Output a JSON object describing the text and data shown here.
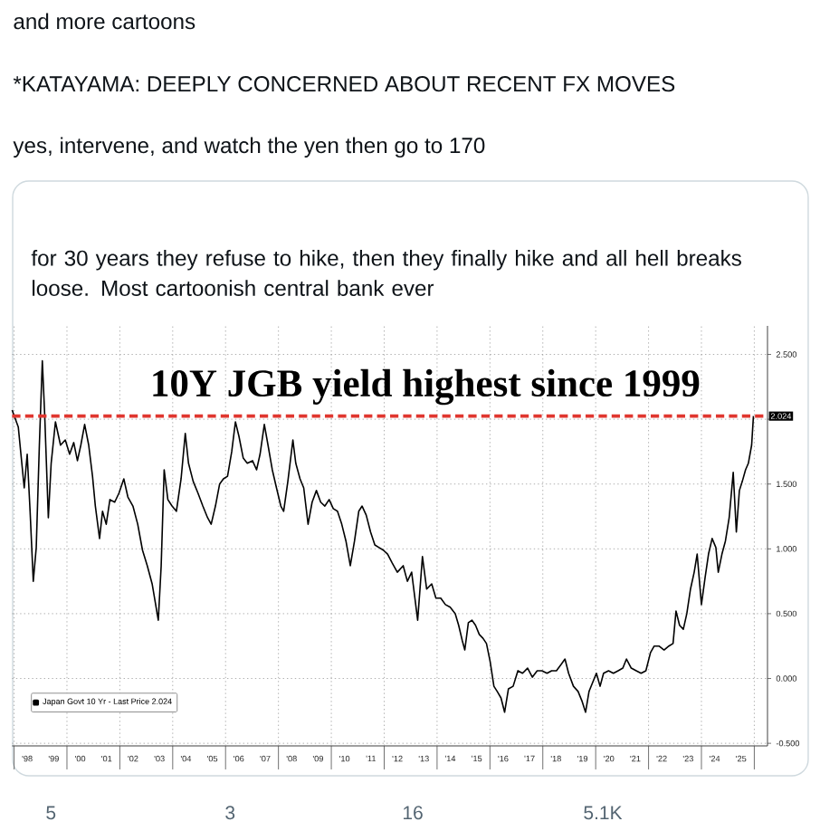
{
  "chart_data": {
    "type": "line",
    "annotations": [
      "and more cartoons",
      "*KATAYAMA: DEEPLY CONCERNED ABOUT RECENT FX MOVES",
      "yes, intervene, and watch the yen then go to 170",
      "for 30 years they refuse to hike, then they finally hike and all hell breaks loose. Most cartoonish central bank ever",
      "5",
      "3",
      "16",
      "5.1K",
      {
        "text": "2.024",
        "y": 2.024
      }
    ],
    "x": [
      "1997-12-05",
      "1998-02-28",
      "1998-05-21",
      "1998-07-01",
      "1998-08-10",
      "1998-09-23",
      "1998-11-03",
      "1998-12-16",
      "1999-01-26",
      "1999-02-28",
      "1999-04-19",
      "1999-05-28",
      "1999-07-26",
      "1999-10-04",
      "1999-12-09",
      "2000-02-07",
      "2000-04-04",
      "2000-05-25",
      "2000-07-11",
      "2000-09-02",
      "2000-10-28",
      "2000-12-20",
      "2001-01-28",
      "2001-03-27",
      "2001-05-07",
      "2001-06-27",
      "2001-08-17",
      "2001-10-22",
      "2001-12-20",
      "2002-02-25",
      "2002-04-22",
      "2002-07-01",
      "2002-09-05",
      "2002-11-10",
      "2003-01-15",
      "2003-03-23",
      "2003-06-16",
      "2003-07-26",
      "2003-09-05",
      "2003-10-26",
      "2003-12-23",
      "2004-02-21",
      "2004-04-26",
      "2004-06-23",
      "2004-08-07",
      "2004-10-11",
      "2004-12-16",
      "2005-02-21",
      "2005-04-28",
      "2005-06-16",
      "2005-08-14",
      "2005-10-11",
      "2005-12-02",
      "2006-01-28",
      "2006-03-27",
      "2006-05-17",
      "2006-07-04",
      "2006-09-02",
      "2006-10-28",
      "2007-01-08",
      "2007-03-05",
      "2007-04-22",
      "2007-06-20",
      "2007-08-10",
      "2007-10-08",
      "2007-12-05",
      "2008-02-03",
      "2008-03-13",
      "2008-05-10",
      "2008-07-19",
      "2008-08-28",
      "2008-10-26",
      "2008-12-16",
      "2009-02-14",
      "2009-04-11",
      "2009-06-09",
      "2009-08-07",
      "2009-10-04",
      "2009-12-02",
      "2010-01-28",
      "2010-03-27",
      "2010-05-25",
      "2010-07-22",
      "2010-09-20",
      "2010-11-17",
      "2011-01-15",
      "2011-03-02",
      "2011-04-28",
      "2011-06-27",
      "2011-08-25",
      "2011-10-22",
      "2011-12-20",
      "2012-02-17",
      "2012-04-22",
      "2012-07-01",
      "2012-09-20",
      "2012-11-17",
      "2013-01-15",
      "2013-04-08",
      "2013-06-13",
      "2013-08-10",
      "2013-10-19",
      "2013-12-16",
      "2014-02-21",
      "2014-04-26",
      "2014-07-01",
      "2014-09-09",
      "2014-10-26",
      "2014-12-16",
      "2015-01-19",
      "2015-03-09",
      "2015-04-28",
      "2015-06-16",
      "2015-08-07",
      "2015-09-27",
      "2015-11-14",
      "2016-01-04",
      "2016-02-25",
      "2016-04-11",
      "2016-06-02",
      "2016-07-22",
      "2016-09-13",
      "2016-11-17",
      "2017-01-22",
      "2017-03-27",
      "2017-06-05",
      "2017-08-10",
      "2017-10-15",
      "2017-12-20",
      "2018-02-28",
      "2018-05-03",
      "2018-07-08",
      "2018-09-13",
      "2018-11-03",
      "2018-12-23",
      "2019-02-28",
      "2019-05-03",
      "2019-06-23",
      "2019-08-14",
      "2019-10-01",
      "2019-11-21",
      "2020-01-11",
      "2020-03-02",
      "2020-04-19",
      "2020-06-27",
      "2020-09-02",
      "2020-11-07",
      "2021-01-11",
      "2021-03-02",
      "2021-05-07",
      "2021-07-15",
      "2021-09-20",
      "2021-11-25",
      "2022-01-28",
      "2022-03-20",
      "2022-05-25",
      "2022-08-03",
      "2022-10-08",
      "2022-12-05",
      "2023-01-15",
      "2023-03-05",
      "2023-04-26",
      "2023-06-13",
      "2023-08-03",
      "2023-09-23",
      "2023-11-03",
      "2024-01-01",
      "2024-02-21",
      "2024-04-08",
      "2024-05-28",
      "2024-07-19",
      "2024-08-21",
      "2024-10-11",
      "2024-11-28",
      "2025-01-19",
      "2025-03-16",
      "2025-04-28",
      "2025-06-09",
      "2025-07-19",
      "2025-09-02",
      "2025-10-11",
      "2025-11-25",
      "2025-12-20"
    ],
    "series": [
      {
        "name": "Japan Govt 10 Yr - Last Price 2.024",
        "color": "#000000",
        "values": [
          2.07,
          1.94,
          1.47,
          1.73,
          1.29,
          0.75,
          1.01,
          1.8,
          2.45,
          2.03,
          1.24,
          1.66,
          1.98,
          1.8,
          1.84,
          1.73,
          1.82,
          1.68,
          1.8,
          1.96,
          1.8,
          1.56,
          1.33,
          1.08,
          1.29,
          1.19,
          1.38,
          1.36,
          1.43,
          1.54,
          1.4,
          1.33,
          1.19,
          0.99,
          0.87,
          0.73,
          0.45,
          0.87,
          1.61,
          1.38,
          1.33,
          1.29,
          1.54,
          1.89,
          1.66,
          1.52,
          1.43,
          1.33,
          1.24,
          1.19,
          1.33,
          1.5,
          1.54,
          1.56,
          1.75,
          1.98,
          1.87,
          1.7,
          1.66,
          1.68,
          1.61,
          1.73,
          1.96,
          1.8,
          1.61,
          1.47,
          1.33,
          1.29,
          1.52,
          1.84,
          1.66,
          1.54,
          1.47,
          1.19,
          1.36,
          1.45,
          1.36,
          1.33,
          1.38,
          1.31,
          1.29,
          1.19,
          1.06,
          0.87,
          1.06,
          1.29,
          1.33,
          1.26,
          1.13,
          1.03,
          1.01,
          0.99,
          0.96,
          0.89,
          0.82,
          0.87,
          0.75,
          0.82,
          0.45,
          0.94,
          0.69,
          0.73,
          0.62,
          0.62,
          0.57,
          0.55,
          0.5,
          0.41,
          0.29,
          0.22,
          0.43,
          0.45,
          0.41,
          0.34,
          0.31,
          0.27,
          0.13,
          -0.06,
          -0.1,
          -0.15,
          -0.26,
          -0.08,
          -0.06,
          0.06,
          0.04,
          0.08,
          0.01,
          0.06,
          0.06,
          0.04,
          0.06,
          0.06,
          0.11,
          0.15,
          0.04,
          -0.06,
          -0.1,
          -0.17,
          -0.26,
          -0.1,
          -0.03,
          0.04,
          -0.06,
          0.04,
          0.06,
          0.04,
          0.06,
          0.08,
          0.15,
          0.08,
          0.06,
          0.04,
          0.06,
          0.2,
          0.25,
          0.25,
          0.22,
          0.25,
          0.27,
          0.52,
          0.41,
          0.38,
          0.5,
          0.69,
          0.82,
          0.96,
          0.57,
          0.78,
          0.96,
          1.08,
          1.01,
          0.82,
          0.96,
          1.06,
          1.24,
          1.59,
          1.13,
          1.45,
          1.52,
          1.61,
          1.66,
          1.8,
          2.024
        ]
      }
    ],
    "xlim": [
      "1997-12-05",
      "2026-07-02"
    ],
    "xticks": [
      {
        "value": "1998",
        "label": null
      },
      {
        "value": "1998-07-02",
        "label": "'98"
      },
      {
        "value": "1999-07-02",
        "label": "'99"
      },
      {
        "value": "2000",
        "label": null
      },
      {
        "value": "2000-07-02",
        "label": "'00"
      },
      {
        "value": "2001-07-02",
        "label": "'01"
      },
      {
        "value": "2002",
        "label": null
      },
      {
        "value": "2002-07-02",
        "label": "'02"
      },
      {
        "value": "2003-07-02",
        "label": "'03"
      },
      {
        "value": "2004",
        "label": null
      },
      {
        "value": "2004-07-02",
        "label": "'04"
      },
      {
        "value": "2005-07-02",
        "label": "'05"
      },
      {
        "value": "2006",
        "label": null
      },
      {
        "value": "2006-07-02",
        "label": "'06"
      },
      {
        "value": "2007-07-02",
        "label": "'07"
      },
      {
        "value": "2008",
        "label": null
      },
      {
        "value": "2008-07-02",
        "label": "'08"
      },
      {
        "value": "2009-07-02",
        "label": "'09"
      },
      {
        "value": "2010",
        "label": null
      },
      {
        "value": "2010-07-02",
        "label": "'10"
      },
      {
        "value": "2011-07-02",
        "label": "'11"
      },
      {
        "value": "2012",
        "label": null
      },
      {
        "value": "2012-07-02",
        "label": "'12"
      },
      {
        "value": "2013-07-02",
        "label": "'13"
      },
      {
        "value": "2014",
        "label": null
      },
      {
        "value": "2014-07-02",
        "label": "'14"
      },
      {
        "value": "2015-07-02",
        "label": "'15"
      },
      {
        "value": "2016",
        "label": null
      },
      {
        "value": "2016-07-02",
        "label": "'16"
      },
      {
        "value": "2017-07-02",
        "label": "'17"
      },
      {
        "value": "2018",
        "label": null
      },
      {
        "value": "2018-07-02",
        "label": "'18"
      },
      {
        "value": "2019-07-02",
        "label": "'19"
      },
      {
        "value": "2020",
        "label": null
      },
      {
        "value": "2020-07-02",
        "label": "'20"
      },
      {
        "value": "2021-07-02",
        "label": "'21"
      },
      {
        "value": "2022",
        "label": null
      },
      {
        "value": "2022-07-02",
        "label": "'22"
      },
      {
        "value": "2023-07-02",
        "label": "'23"
      },
      {
        "value": "2024",
        "label": null
      },
      {
        "value": "2024-07-02",
        "label": "'24"
      },
      {
        "value": "2025-07-02",
        "label": "'25"
      },
      {
        "value": "2026",
        "label": null
      }
    ],
    "ylim": [
      -0.52,
      2.72
    ],
    "yticks": [
      {
        "value": -0.5,
        "label": "-0.500"
      },
      {
        "value": 0,
        "label": "0.000"
      },
      {
        "value": 0.5,
        "label": "0.500"
      },
      {
        "value": 1,
        "label": "1.000"
      },
      {
        "value": 1.5,
        "label": "1.500"
      },
      {
        "value": 2,
        "label": null
      },
      {
        "value": 2.5,
        "label": "2.500"
      }
    ],
    "grid": true,
    "legend": "bottom left",
    "ref_lines": [
      {
        "axis": "y",
        "value": 2.024,
        "label": "10Y JGB yield highest since 1999",
        "color": "#e0362f",
        "line_style": "dashed"
      }
    ]
  }
}
